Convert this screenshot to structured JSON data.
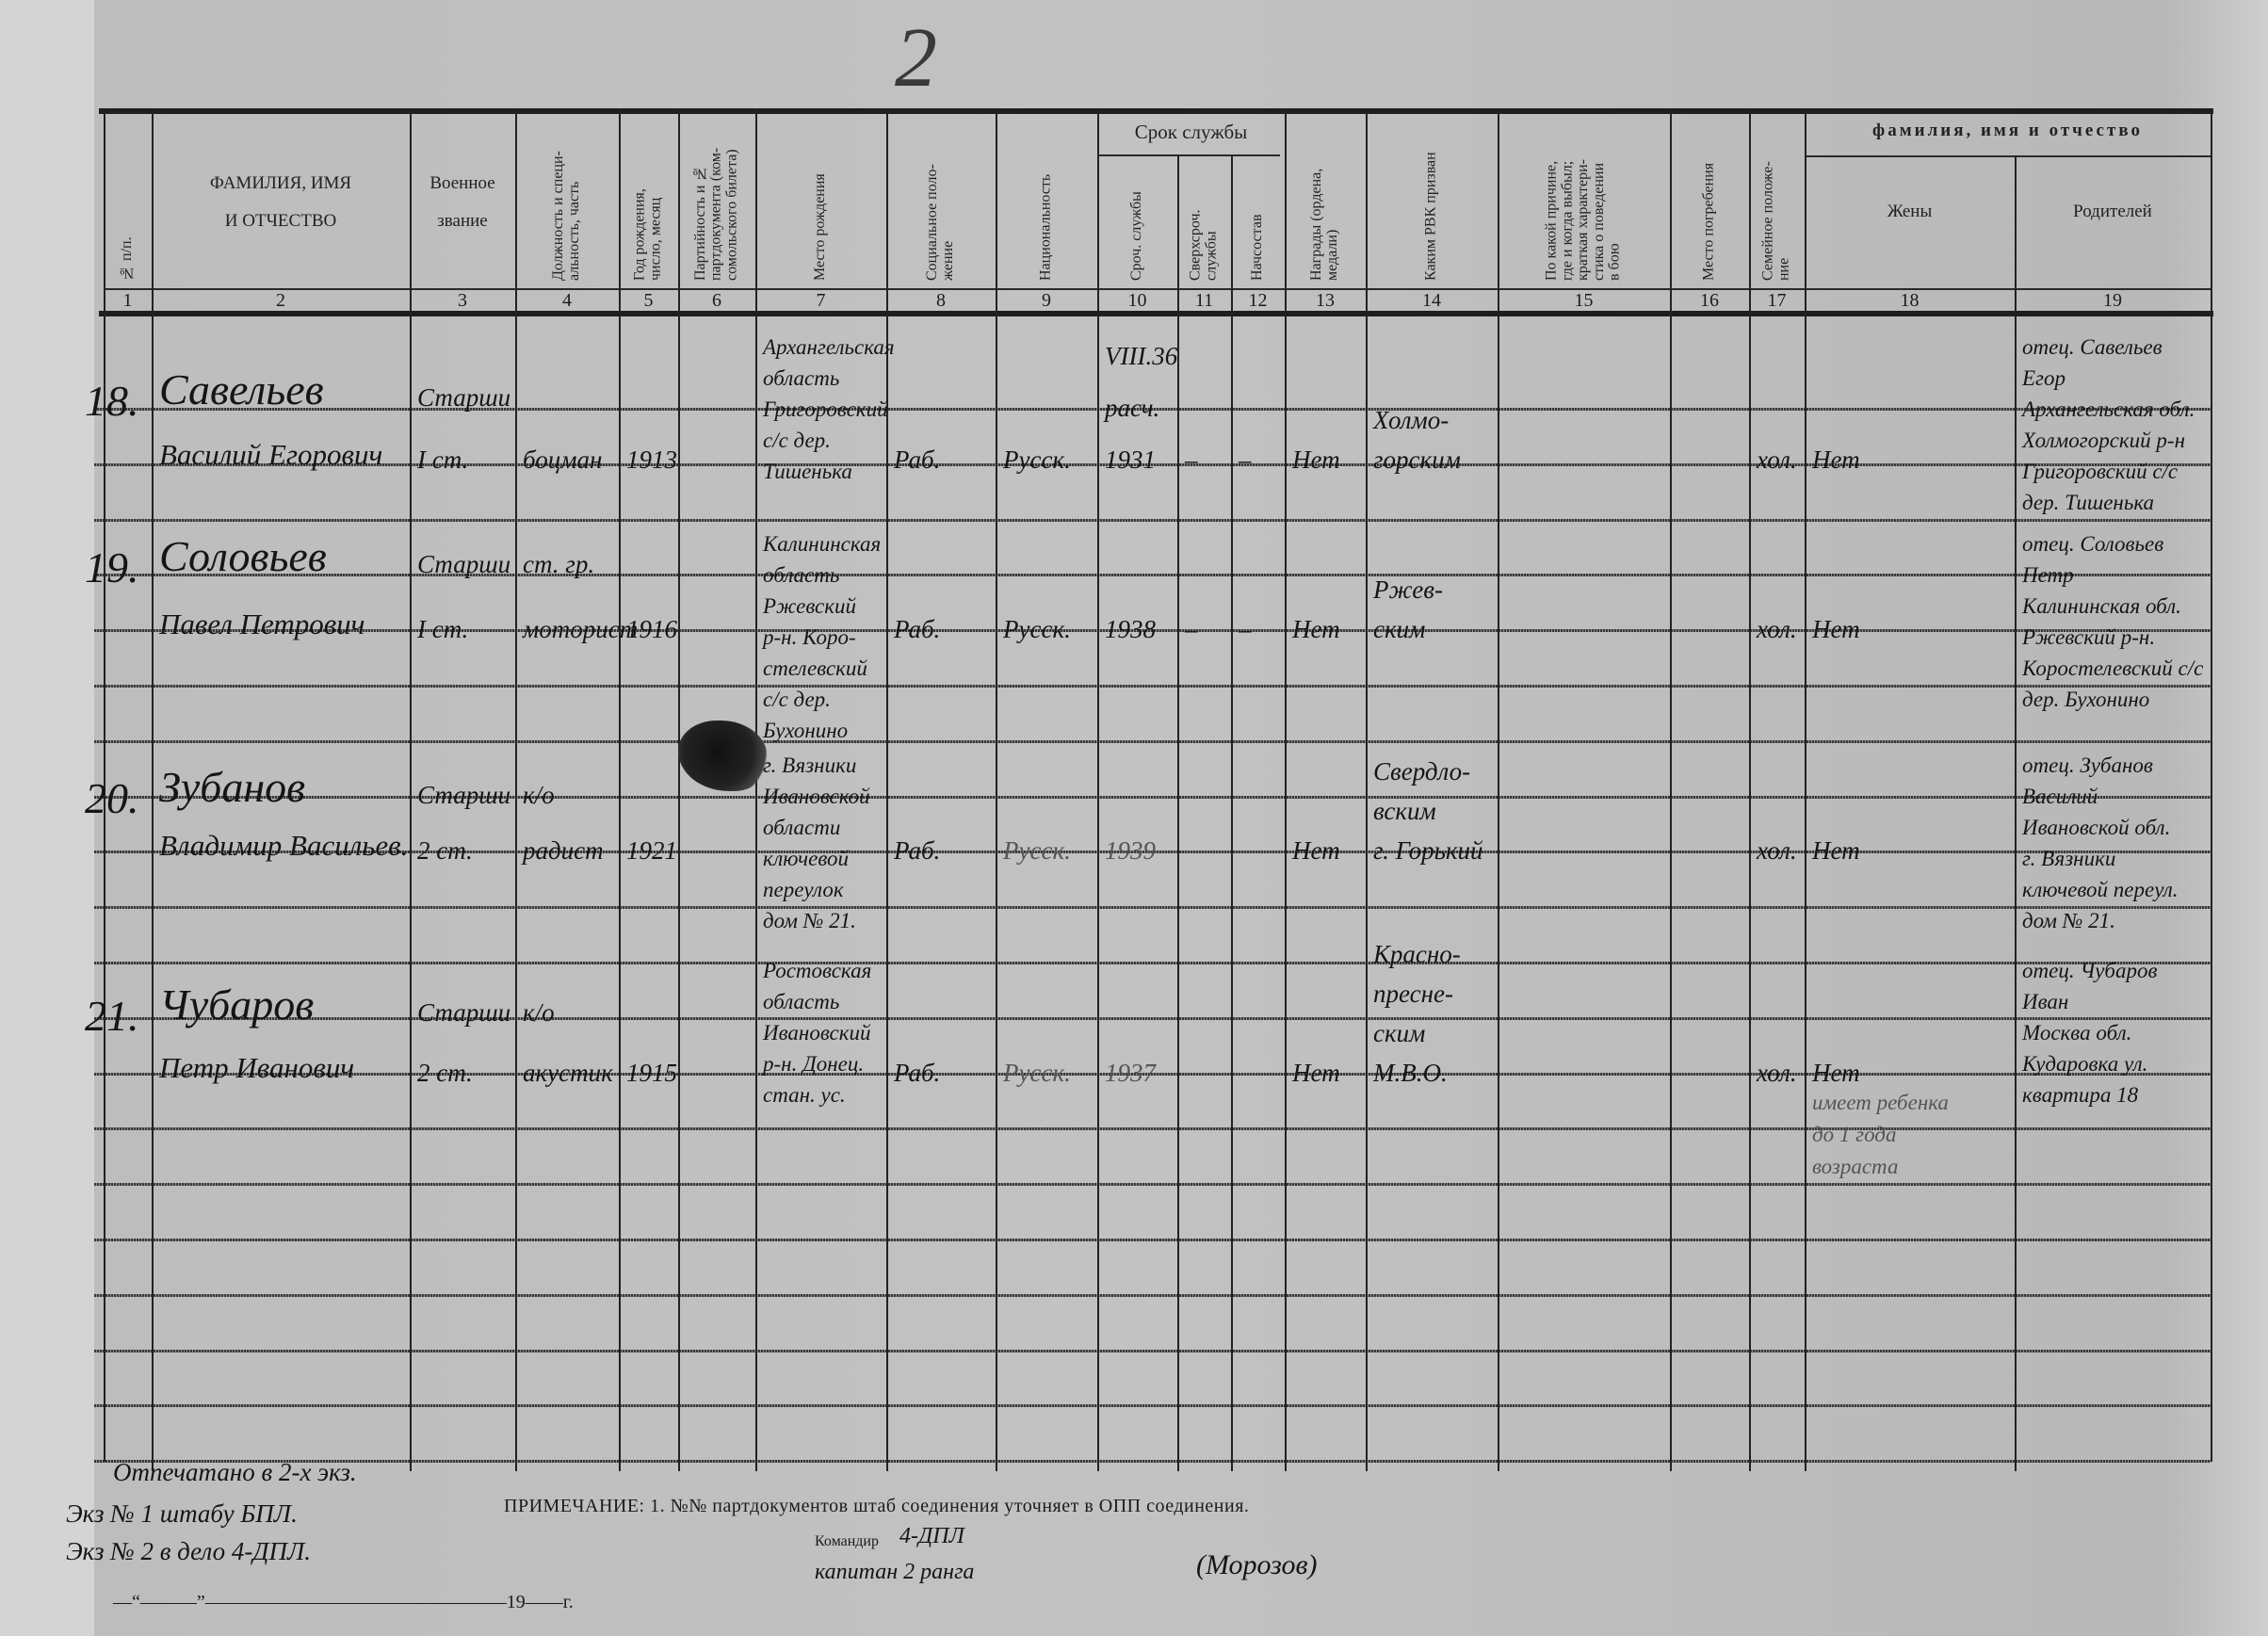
{
  "page_number": "2",
  "header": {
    "group_service": "Срок службы",
    "group_names": "фамилия, имя и отчество",
    "columns": [
      {
        "num": "1",
        "label": "№ п/п."
      },
      {
        "num": "2",
        "label": "ФАМИЛИЯ, ИМЯ\nИ ОТЧЕСТВО"
      },
      {
        "num": "3",
        "label": "Военное\nзвание"
      },
      {
        "num": "4",
        "label": "Должность и специ-\nальность, часть"
      },
      {
        "num": "5",
        "label": "Год рождения,\nчисло, месяц"
      },
      {
        "num": "6",
        "label": "Партийность и №\nпартдокумента (ком-\nсомольского билета)"
      },
      {
        "num": "7",
        "label": "Место рождения"
      },
      {
        "num": "8",
        "label": "Социальное поло-\nжение"
      },
      {
        "num": "9",
        "label": "Национальность"
      },
      {
        "num": "10",
        "label": "Сроч. службы"
      },
      {
        "num": "11",
        "label": "Сверхсроч.\nслужбы"
      },
      {
        "num": "12",
        "label": "Начсостав"
      },
      {
        "num": "13",
        "label": "Награды (ордена,\nмедали)"
      },
      {
        "num": "14",
        "label": "Каким РВК призван"
      },
      {
        "num": "15",
        "label": "По какой причине,\nгде и когда выбыл;\nкраткая характери-\nстика о поведении\nв бою"
      },
      {
        "num": "16",
        "label": "Место погребения"
      },
      {
        "num": "17",
        "label": "Семейное положе-\nние"
      },
      {
        "num": "18",
        "label": "Жены"
      },
      {
        "num": "19",
        "label": "Родителей"
      }
    ]
  },
  "entries": [
    {
      "cells": {
        "1": [
          "18."
        ],
        "2": [
          "Савельев",
          "Василий Егорович"
        ],
        "3": [
          "Старши",
          "I ст."
        ],
        "4": [
          "",
          "боцман"
        ],
        "5": [
          "1913"
        ],
        "7": [
          "Архангельская",
          "область",
          "Григоровский",
          "с/с дер.",
          "Тишенька"
        ],
        "8": [
          "Раб."
        ],
        "9": [
          "Русск."
        ],
        "10": [
          "VIII.36",
          "расч.",
          "1931"
        ],
        "11": [
          "–"
        ],
        "12": [
          "–"
        ],
        "13": [
          "Нет"
        ],
        "14": [
          "Холмо-",
          "горским"
        ],
        "17": [
          "хол."
        ],
        "18": [
          "Нет"
        ],
        "19": [
          "отец. Савельев",
          "Егор",
          "Архангельская обл.",
          "Холмогорский р-н",
          "Григоровский с/с",
          "дер. Тишенька"
        ]
      }
    },
    {
      "cells": {
        "1": [
          "19."
        ],
        "2": [
          "Соловьев",
          "Павел Петрович"
        ],
        "3": [
          "Старши",
          "I ст."
        ],
        "4": [
          "ст. гр.",
          "моторист"
        ],
        "5": [
          "1916"
        ],
        "7": [
          "Калининская",
          "область",
          "Ржевский",
          "р-н. Коро-",
          "стелевский",
          "с/с дер.",
          "Бухонино"
        ],
        "8": [
          "Раб."
        ],
        "9": [
          "Русск."
        ],
        "10": [
          "1938"
        ],
        "11": [
          "–"
        ],
        "12": [
          "–"
        ],
        "13": [
          "Нет"
        ],
        "14": [
          "Ржев-",
          "ским"
        ],
        "17": [
          "хол."
        ],
        "18": [
          "Нет"
        ],
        "19": [
          "отец. Соловьев",
          "Петр",
          "Калининская обл.",
          "Ржевский р-н.",
          "Коростелевский с/с",
          "дер. Бухонино"
        ]
      }
    },
    {
      "cells": {
        "1": [
          "20."
        ],
        "2": [
          "Зубанов",
          "Владимир Васильев."
        ],
        "3": [
          "Старши",
          "2 ст."
        ],
        "4": [
          "к/о",
          "радист"
        ],
        "5": [
          "1921"
        ],
        "7": [
          "г. Вязники",
          "Ивановской",
          "области",
          "ключевой",
          "переулок",
          "дом № 21."
        ],
        "8": [
          "Раб."
        ],
        "9": [
          "Русск."
        ],
        "10": [
          "1939"
        ],
        "13": [
          "Нет"
        ],
        "14": [
          "Свердло-",
          "вским",
          "г. Горький"
        ],
        "17": [
          "хол."
        ],
        "18": [
          "Нет"
        ],
        "19": [
          "отец. Зубанов",
          "Василий",
          "Ивановской обл.",
          "г. Вязники",
          "ключевой переул.",
          "дом № 21."
        ]
      }
    },
    {
      "cells": {
        "1": [
          "21."
        ],
        "2": [
          "Чубаров",
          "Петр Иванович"
        ],
        "3": [
          "Старши",
          "2 ст."
        ],
        "4": [
          "к/о",
          "акустик"
        ],
        "5": [
          "1915"
        ],
        "7": [
          "Ростовская",
          "область",
          "Ивановский",
          "р-н. Донец.",
          "стан. ус."
        ],
        "8": [
          "Раб."
        ],
        "9": [
          "Русск."
        ],
        "10": [
          "1937"
        ],
        "13": [
          "Нет"
        ],
        "14": [
          "Красно-",
          "пресне-",
          "ским",
          "М.В.О."
        ],
        "17": [
          "хол."
        ],
        "18": [
          "Нет",
          "имеет ребенка",
          "до 1 года",
          "возраста"
        ],
        "19": [
          "отец. Чубаров",
          "Иван",
          "Москва обл.",
          "Кударовка ул.",
          "квартира 18"
        ]
      }
    }
  ],
  "footer": {
    "copies": [
      "Отпечатано в 2-х экз.",
      "Экз № 1 штабу БПЛ.",
      "Экз № 2 в дело 4-ДПЛ."
    ],
    "note": "ПРИМЕЧАНИЕ: 1. №№ партдокументов штаб соединения уточняет в ОПП соединения.",
    "commander_label": "Командир",
    "commander_unit": "4-ДПЛ",
    "commander_rank": "капитан 2 ранга",
    "signature": "(Морозов)",
    "date_line": "—“———”————————————————19——г."
  }
}
